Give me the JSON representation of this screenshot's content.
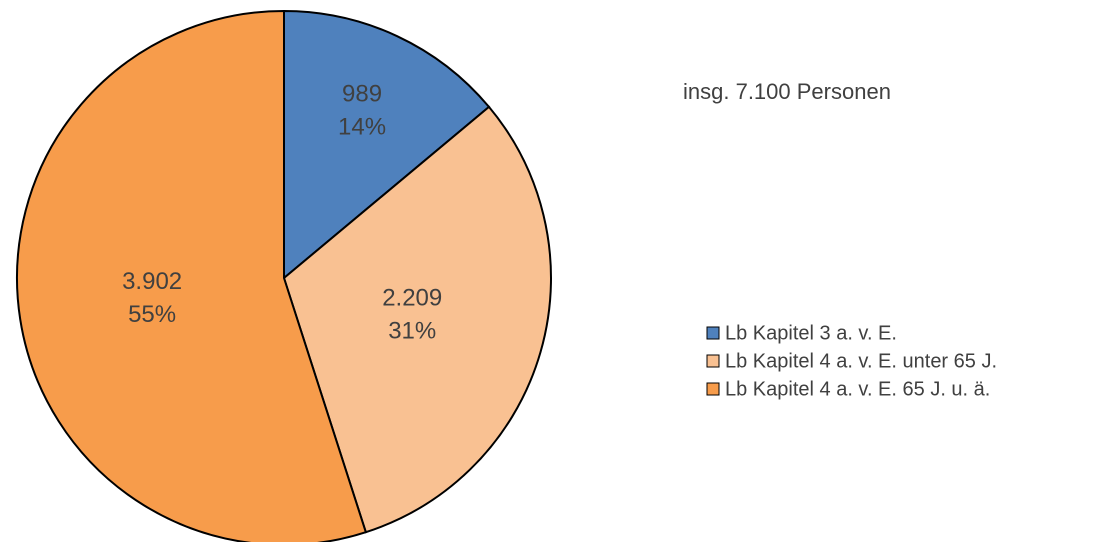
{
  "chart_data": {
    "type": "pie",
    "annotation": "insg. 7.100 Personen",
    "categories": [
      "Lb Kapitel 3 a. v. E.",
      "Lb Kapitel 4 a. v. E. unter 65 J.",
      "Lb Kapitel 4 a. v. E. 65 J. u. ä."
    ],
    "values": [
      989,
      2209,
      3902
    ],
    "value_labels": [
      "989",
      "2.209",
      "3.902"
    ],
    "percentages": [
      14,
      31,
      55
    ],
    "percentage_labels": [
      "14%",
      "31%",
      "55%"
    ],
    "colors": [
      "#4f81bd",
      "#f9c192",
      "#f79c4b"
    ],
    "legend": "right"
  }
}
